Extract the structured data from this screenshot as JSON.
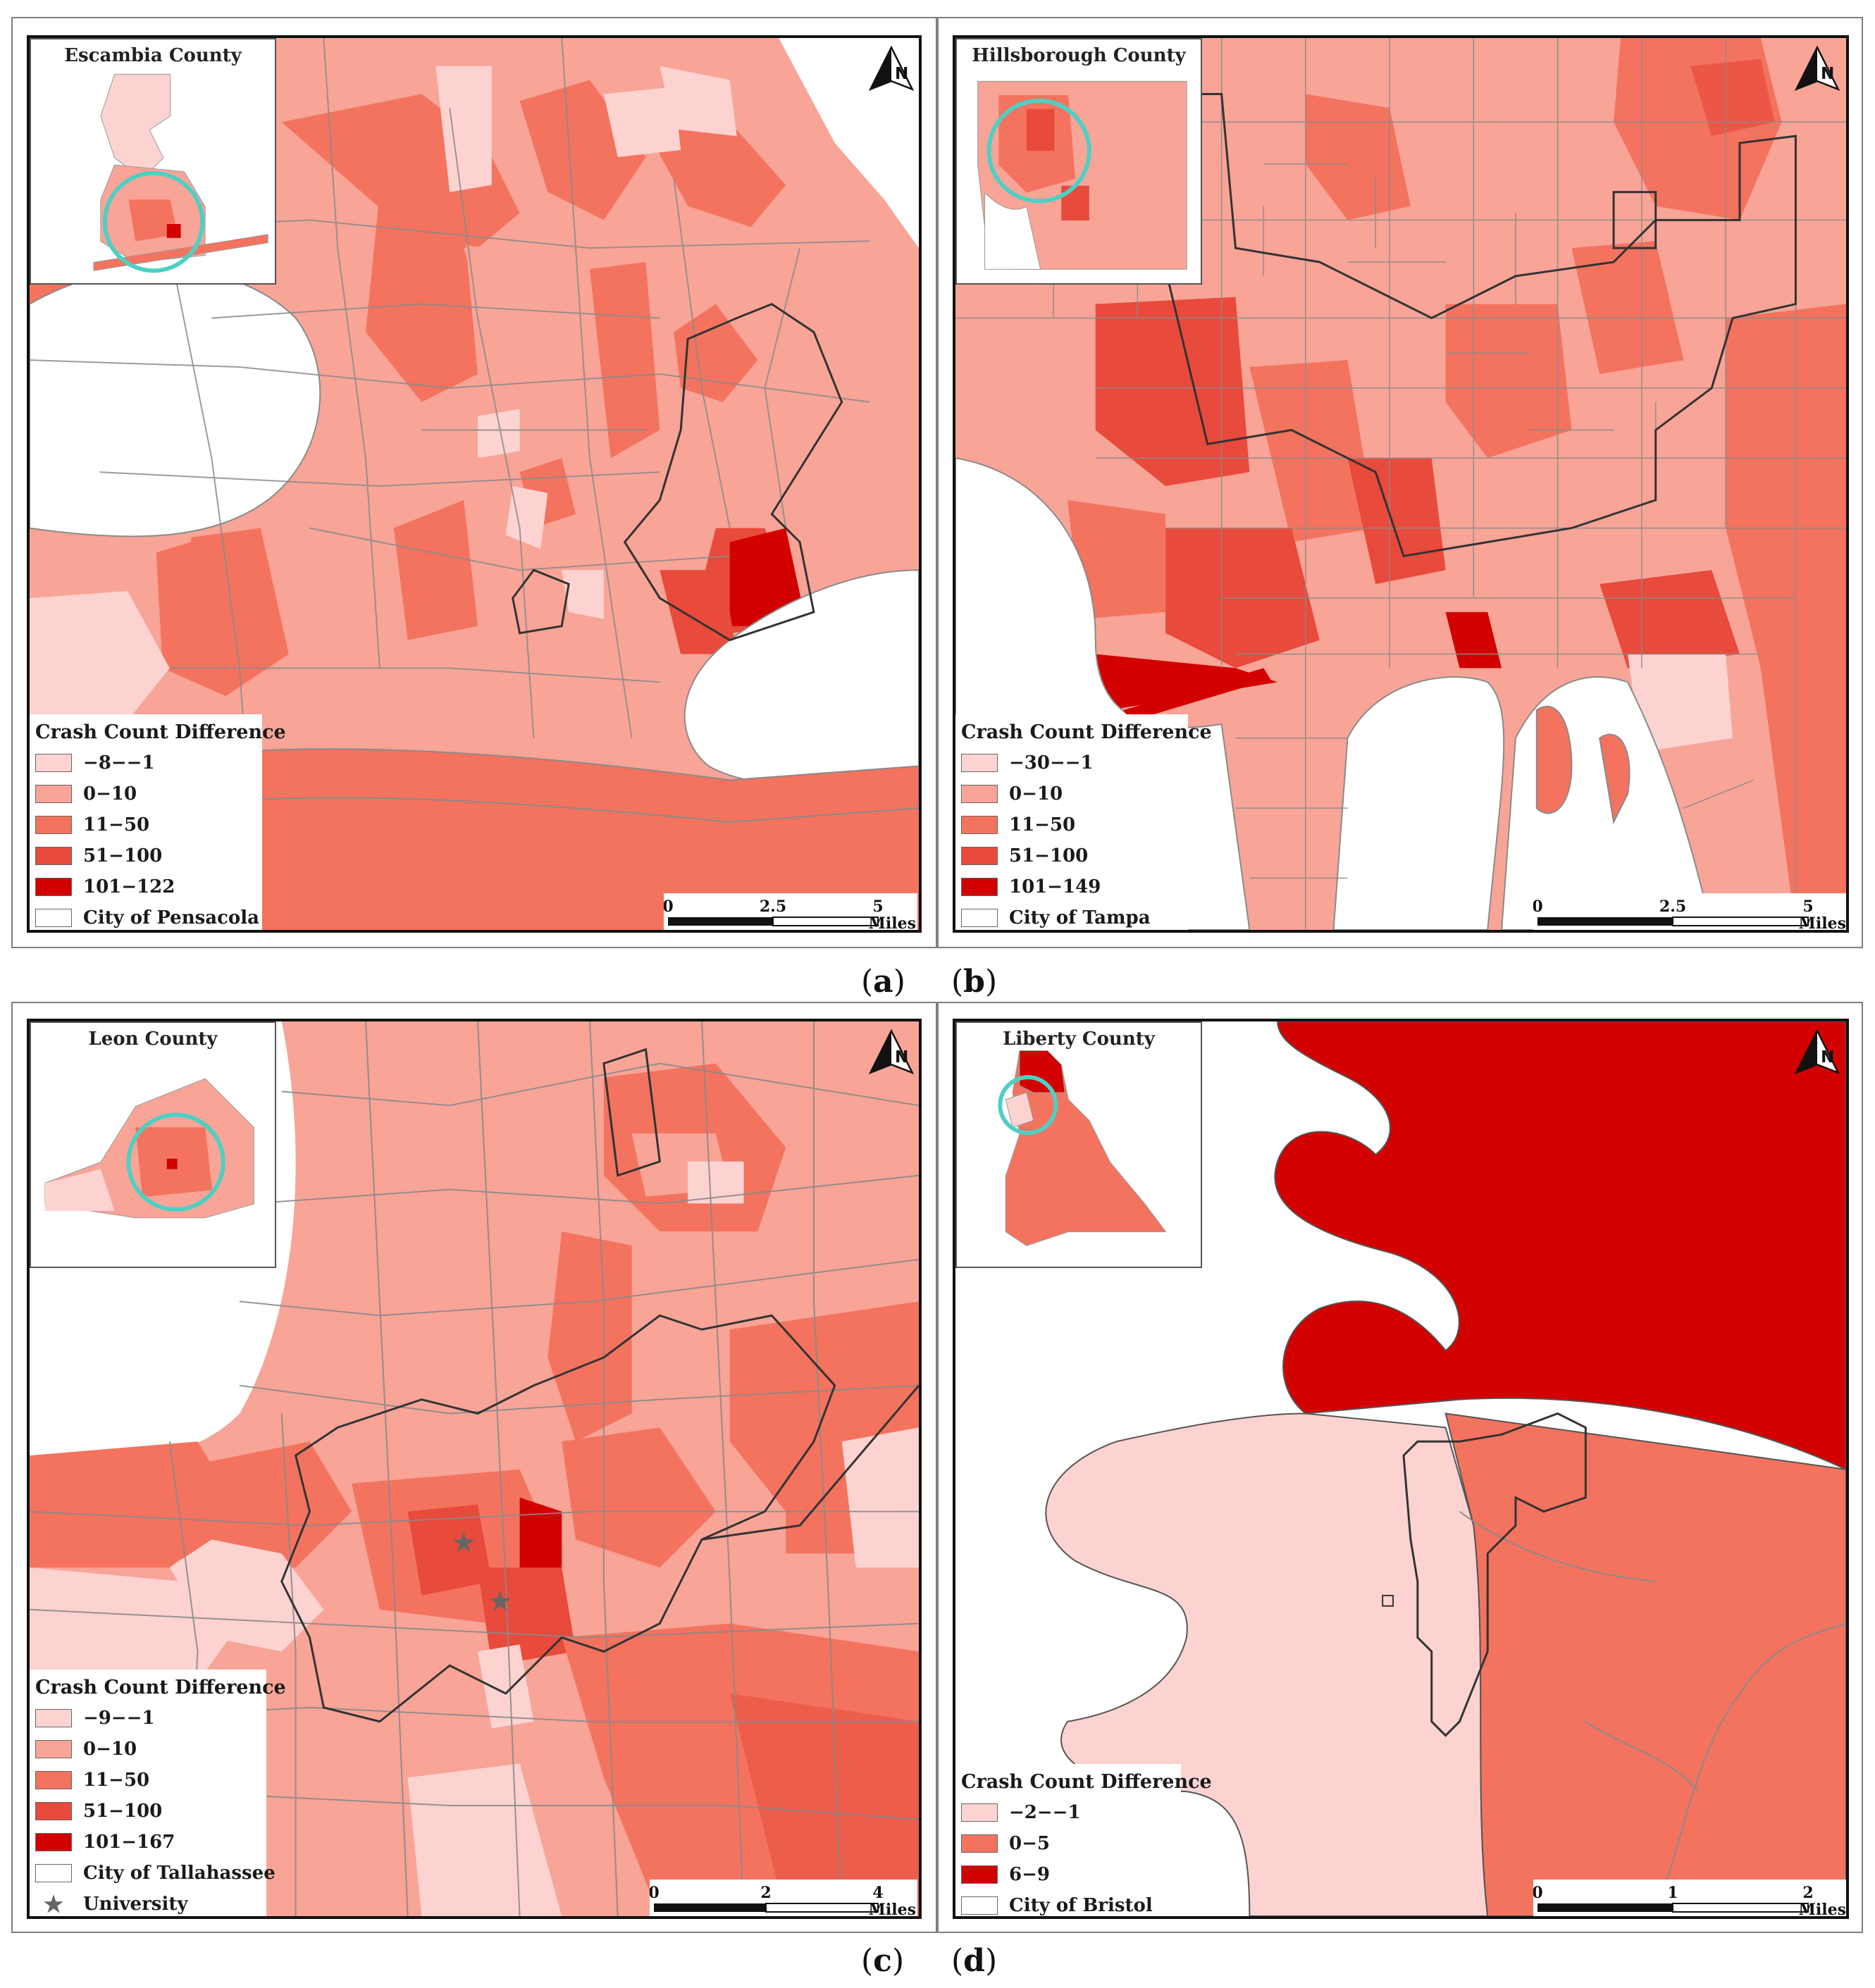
{
  "panels": [
    {
      "inset_title": "Escambia County",
      "legend_title": "Crash Count Difference",
      "legend": [
        {
          "label": "−8−−1",
          "color": "#fcd3d1"
        },
        {
          "label": "0−10",
          "color": "#f8a497"
        },
        {
          "label": "11−50",
          "color": "#f3735f"
        },
        {
          "label": "51−100",
          "color": "#e84a3c"
        },
        {
          "label": "101−122",
          "color": "#d30000"
        },
        {
          "label": "City of Pensacola",
          "color": "#ffffff"
        }
      ],
      "scale": {
        "ticks": [
          "0",
          "2.5",
          "5"
        ],
        "unit": "Miles"
      },
      "caption_letter": "a"
    },
    {
      "inset_title": "Hillsborough County",
      "legend_title": "Crash Count Difference",
      "legend": [
        {
          "label": "−30−−1",
          "color": "#fcd3d1"
        },
        {
          "label": "0−10",
          "color": "#f8a497"
        },
        {
          "label": "11−50",
          "color": "#f3735f"
        },
        {
          "label": "51−100",
          "color": "#e84a3c"
        },
        {
          "label": "101−149",
          "color": "#d30000"
        },
        {
          "label": "City of Tampa",
          "color": "#ffffff"
        }
      ],
      "scale": {
        "ticks": [
          "0",
          "2.5",
          "5"
        ],
        "unit": "Miles"
      },
      "caption_letter": "b"
    },
    {
      "inset_title": "Leon County",
      "legend_title": "Crash Count Difference",
      "legend": [
        {
          "label": "−9−−1",
          "color": "#fcd3d1"
        },
        {
          "label": "0−10",
          "color": "#f8a497"
        },
        {
          "label": "11−50",
          "color": "#f3735f"
        },
        {
          "label": "51−100",
          "color": "#e84a3c"
        },
        {
          "label": "101−167",
          "color": "#d30000"
        },
        {
          "label": "City of Tallahassee",
          "color": "#ffffff"
        }
      ],
      "university_label": "University",
      "scale": {
        "ticks": [
          "0",
          "2",
          "4"
        ],
        "unit": "Miles"
      },
      "caption_letter": "c"
    },
    {
      "inset_title": "Liberty County",
      "legend_title": "Crash Count Difference",
      "legend": [
        {
          "label": "−2−−1",
          "color": "#fcd3d1"
        },
        {
          "label": "0−5",
          "color": "#f3735f"
        },
        {
          "label": "6−9",
          "color": "#d30000"
        },
        {
          "label": "City of Bristol",
          "color": "#ffffff"
        }
      ],
      "scale": {
        "ticks": [
          "0",
          "1",
          "2"
        ],
        "unit": "Miles"
      },
      "caption_letter": "d"
    }
  ],
  "north_arrow_label": "N",
  "colors": {
    "water": "#ffffff",
    "boundary": "#8a8a8a",
    "city_outline": "#333333",
    "circle": "#4dd0c4"
  }
}
